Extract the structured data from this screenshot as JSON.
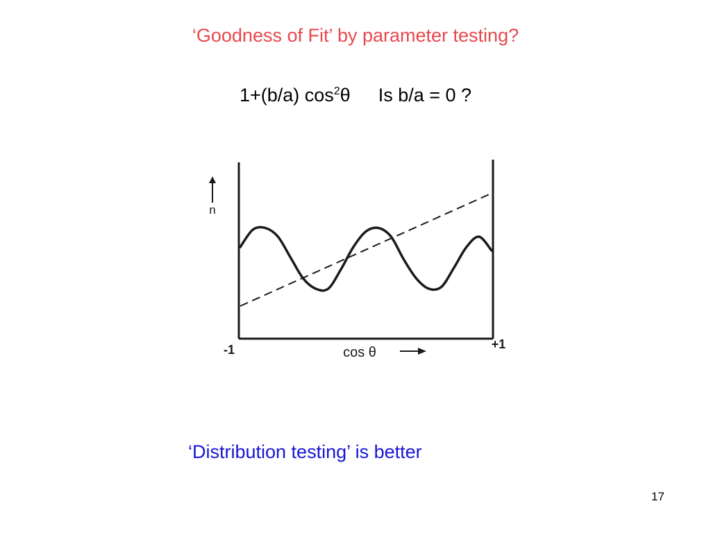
{
  "slide": {
    "title": "‘Goodness of Fit’ by parameter testing?",
    "formula_prefix": "1+(b/a) cos",
    "formula_exponent": "2",
    "formula_suffix": "θ",
    "question": "Is b/a = 0 ?",
    "conclusion": "‘Distribution testing’ is better",
    "slide_number": "17"
  },
  "colors": {
    "title": "#e8474c",
    "conclusion": "#1515d6",
    "ink": "#1a1a1a"
  },
  "chart_data": {
    "type": "line",
    "xlabel": "cos θ",
    "ylabel": "n",
    "x_tick_labels": [
      "-1",
      "+1"
    ],
    "xlim": [
      -1,
      1
    ],
    "ylim": [
      0,
      1
    ],
    "grid": false,
    "legend": "none",
    "series": [
      {
        "style": "solid",
        "x": [
          -1.0,
          -0.9,
          -0.8,
          -0.7,
          -0.6,
          -0.5,
          -0.4,
          -0.3,
          -0.2,
          -0.1,
          0.0,
          0.1,
          0.2,
          0.3,
          0.4,
          0.5,
          0.6,
          0.7,
          0.8,
          0.9,
          1.0
        ],
        "y": [
          0.52,
          0.62,
          0.63,
          0.58,
          0.46,
          0.34,
          0.28,
          0.28,
          0.39,
          0.52,
          0.61,
          0.63,
          0.58,
          0.45,
          0.34,
          0.28,
          0.29,
          0.4,
          0.52,
          0.58,
          0.5
        ]
      },
      {
        "style": "dashed",
        "x": [
          -1,
          1
        ],
        "y": [
          0.18,
          0.83
        ]
      }
    ]
  }
}
